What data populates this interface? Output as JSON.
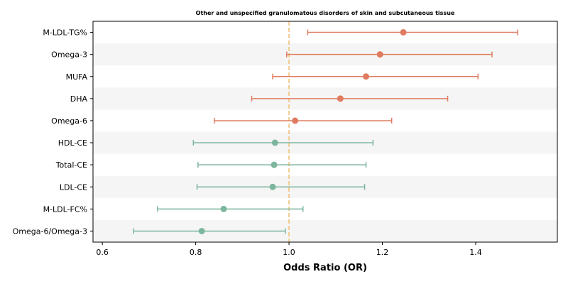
{
  "chart_data": {
    "type": "forest",
    "title": "Other and unspecified granulomatous disorders of skin and subcutaneous tissue",
    "xlabel": "Odds Ratio (OR)",
    "xlim": [
      0.58,
      1.575
    ],
    "xticks": [
      "0.6",
      "0.8",
      "1.0",
      "1.2",
      "1.4"
    ],
    "reference_line": 1.0,
    "colors": {
      "risk": "#e07b5f",
      "protective": "#7cb69d",
      "reference": "#f0c27b",
      "band": "#f5f5f5"
    },
    "rows": [
      {
        "label": "M-LDL-TG%",
        "or": 1.245,
        "lower": 1.04,
        "upper": 1.49,
        "group": "risk"
      },
      {
        "label": "Omega-3",
        "or": 1.195,
        "lower": 0.995,
        "upper": 1.435,
        "group": "risk"
      },
      {
        "label": "MUFA",
        "or": 1.165,
        "lower": 0.965,
        "upper": 1.405,
        "group": "risk"
      },
      {
        "label": "DHA",
        "or": 1.11,
        "lower": 0.92,
        "upper": 1.34,
        "group": "risk"
      },
      {
        "label": "Omega-6",
        "or": 1.013,
        "lower": 0.84,
        "upper": 1.22,
        "group": "risk"
      },
      {
        "label": "HDL-CE",
        "or": 0.97,
        "lower": 0.795,
        "upper": 1.18,
        "group": "protective"
      },
      {
        "label": "Total-CE",
        "or": 0.968,
        "lower": 0.805,
        "upper": 1.165,
        "group": "protective"
      },
      {
        "label": "LDL-CE",
        "or": 0.965,
        "lower": 0.803,
        "upper": 1.162,
        "group": "protective"
      },
      {
        "label": "M-LDL-FC%",
        "or": 0.86,
        "lower": 0.718,
        "upper": 1.03,
        "group": "protective"
      },
      {
        "label": "Omega-6/Omega-3",
        "or": 0.813,
        "lower": 0.667,
        "upper": 0.992,
        "group": "protective"
      }
    ]
  }
}
